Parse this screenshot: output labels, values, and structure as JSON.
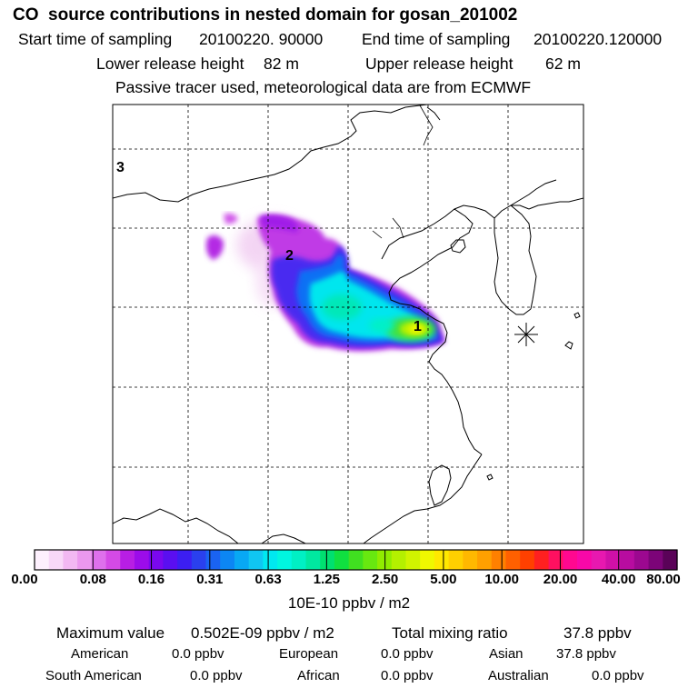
{
  "header": {
    "title": "CO  source contributions in nested domain for gosan_201002",
    "start_label": "Start time of sampling",
    "start_value": "20100220. 90000",
    "end_label": "End time of sampling",
    "end_value": "20100220.120000",
    "lower_label": "Lower release height",
    "lower_value": "82 m",
    "upper_label": "Upper release height",
    "upper_value": "62 m",
    "subtitle": "Passive tracer used, meteorological data are from ECMWF"
  },
  "map": {
    "markers": [
      {
        "label": "1"
      },
      {
        "label": "2"
      },
      {
        "label": "3"
      }
    ],
    "receptor": "receptor-star-icon"
  },
  "colorbar": {
    "ticks": [
      "0.00",
      "0.08",
      "0.16",
      "0.31",
      "0.63",
      "1.25",
      "2.50",
      "5.00",
      "10.00",
      "20.00",
      "40.00",
      "80.00"
    ],
    "colors": [
      "#fdf0fd",
      "#f8d8f8",
      "#f2b8f2",
      "#eb98ee",
      "#de70ec",
      "#d44ae6",
      "#b81ee4",
      "#9c0cea",
      "#7a08ee",
      "#5a0ff0",
      "#3c1ef2",
      "#2a40ee",
      "#1a63f2",
      "#0c86f4",
      "#08a8f4",
      "#10c6f2",
      "#00e8f0",
      "#00f6e0",
      "#00f0c4",
      "#00e8a0",
      "#00e070",
      "#10e040",
      "#40e020",
      "#68e810",
      "#90ec00",
      "#b4f000",
      "#d0f400",
      "#f0f800",
      "#ffe800",
      "#ffd000",
      "#ffb800",
      "#ffa000",
      "#ff8000",
      "#ff6000",
      "#ff4000",
      "#ff2020",
      "#ff1060",
      "#ff0890",
      "#f808a8",
      "#e818b0",
      "#d010a8",
      "#b80ca0",
      "#9c0890",
      "#7c0478",
      "#5a0258"
    ],
    "units": "10E-10 ppbv / m2"
  },
  "stats": {
    "max_label": "Maximum value",
    "max_value": "0.502E-09 ppbv / m2",
    "total_label": "Total mixing ratio",
    "total_value": "37.8 ppbv",
    "regions": [
      {
        "name": "American",
        "value": "0.0 ppbv"
      },
      {
        "name": "European",
        "value": "0.0 ppbv"
      },
      {
        "name": "Asian",
        "value": "37.8 ppbv"
      },
      {
        "name": "South American",
        "value": "0.0 ppbv"
      },
      {
        "name": "African",
        "value": "0.0 ppbv"
      },
      {
        "name": "Australian",
        "value": "0.0 ppbv"
      }
    ]
  }
}
